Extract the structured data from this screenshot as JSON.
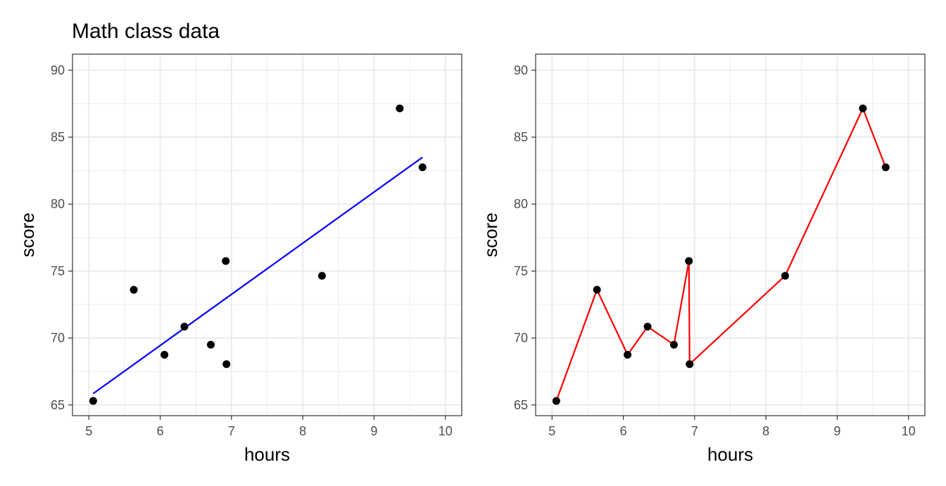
{
  "chart_data": [
    {
      "type": "scatter",
      "title": "Math class data",
      "xlabel": "hours",
      "ylabel": "score",
      "xlim": [
        4.77,
        10.23
      ],
      "ylim": [
        64.2,
        91.2
      ],
      "xticks": [
        5,
        6,
        7,
        8,
        9,
        10
      ],
      "yticks": [
        65,
        70,
        75,
        80,
        85,
        90
      ],
      "grid": true,
      "points": [
        {
          "x": 5.06,
          "y": 65.3
        },
        {
          "x": 5.63,
          "y": 73.6
        },
        {
          "x": 6.06,
          "y": 68.75
        },
        {
          "x": 6.34,
          "y": 70.85
        },
        {
          "x": 6.71,
          "y": 69.5
        },
        {
          "x": 6.92,
          "y": 75.75
        },
        {
          "x": 6.93,
          "y": 68.05
        },
        {
          "x": 8.27,
          "y": 74.65
        },
        {
          "x": 9.36,
          "y": 87.15
        },
        {
          "x": 9.68,
          "y": 82.75
        }
      ],
      "point_color": "#000000",
      "fit_line": {
        "x": [
          5.06,
          9.68
        ],
        "y": [
          65.85,
          83.5
        ],
        "color": "#0000ff"
      }
    },
    {
      "type": "line",
      "title": "",
      "xlabel": "hours",
      "ylabel": "score",
      "xlim": [
        4.77,
        10.23
      ],
      "ylim": [
        64.2,
        91.2
      ],
      "xticks": [
        5,
        6,
        7,
        8,
        9,
        10
      ],
      "yticks": [
        65,
        70,
        75,
        80,
        85,
        90
      ],
      "grid": true,
      "points": [
        {
          "x": 5.06,
          "y": 65.3
        },
        {
          "x": 5.63,
          "y": 73.6
        },
        {
          "x": 6.06,
          "y": 68.75
        },
        {
          "x": 6.34,
          "y": 70.85
        },
        {
          "x": 6.71,
          "y": 69.5
        },
        {
          "x": 6.92,
          "y": 75.75
        },
        {
          "x": 6.93,
          "y": 68.05
        },
        {
          "x": 8.27,
          "y": 74.65
        },
        {
          "x": 9.36,
          "y": 87.15
        },
        {
          "x": 9.68,
          "y": 82.75
        }
      ],
      "point_color": "#000000",
      "line_color": "#ff0000"
    }
  ]
}
